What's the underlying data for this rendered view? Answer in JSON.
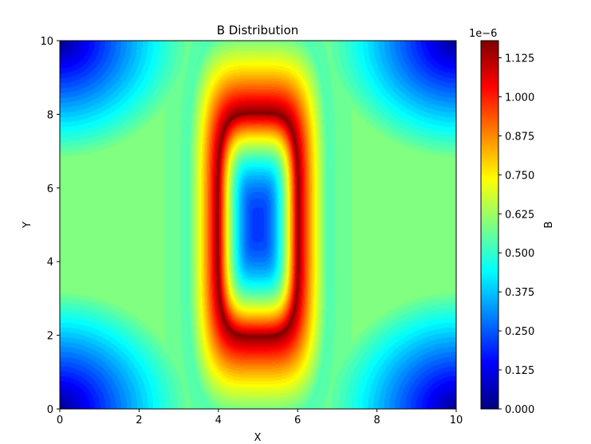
{
  "chart_data": {
    "type": "heatmap",
    "title": "B Distribution",
    "xlabel": "X",
    "ylabel": "Y",
    "xlim": [
      0,
      10
    ],
    "ylim": [
      0,
      10
    ],
    "x_ticks": [
      0,
      2,
      4,
      6,
      8,
      10
    ],
    "x_tick_labels": [
      "0",
      "2",
      "4",
      "6",
      "8",
      "10"
    ],
    "y_ticks": [
      0,
      2,
      4,
      6,
      8,
      10
    ],
    "y_tick_labels": [
      "0",
      "2",
      "4",
      "6",
      "8",
      "10"
    ],
    "colorbar": {
      "label": "B",
      "offset_text": "1e−6",
      "range": [
        0,
        1.18
      ],
      "ticks": [
        0,
        0.125,
        0.25,
        0.375,
        0.5,
        0.625,
        0.75,
        0.875,
        1.0,
        1.125
      ],
      "tick_labels": [
        "0.000",
        "0.125",
        "0.250",
        "0.375",
        "0.500",
        "0.625",
        "0.750",
        "0.875",
        "1.000",
        "1.125"
      ],
      "colormap": "jet",
      "levels": 50
    },
    "conductor_rectangle": {
      "x": [
        4,
        6
      ],
      "y": [
        2,
        8
      ]
    },
    "features": [
      {
        "name": "minimum at center",
        "x": 5,
        "y": 5,
        "value": 0.25
      },
      {
        "name": "corner minimum",
        "x": 0,
        "y": 0,
        "value": 0.0
      },
      {
        "name": "peak along conductor edge",
        "x": 4,
        "y": 5,
        "value": 1.15
      },
      {
        "name": "far-field level",
        "x": 2.5,
        "y": 5,
        "value": 0.6
      }
    ],
    "grid": false
  }
}
